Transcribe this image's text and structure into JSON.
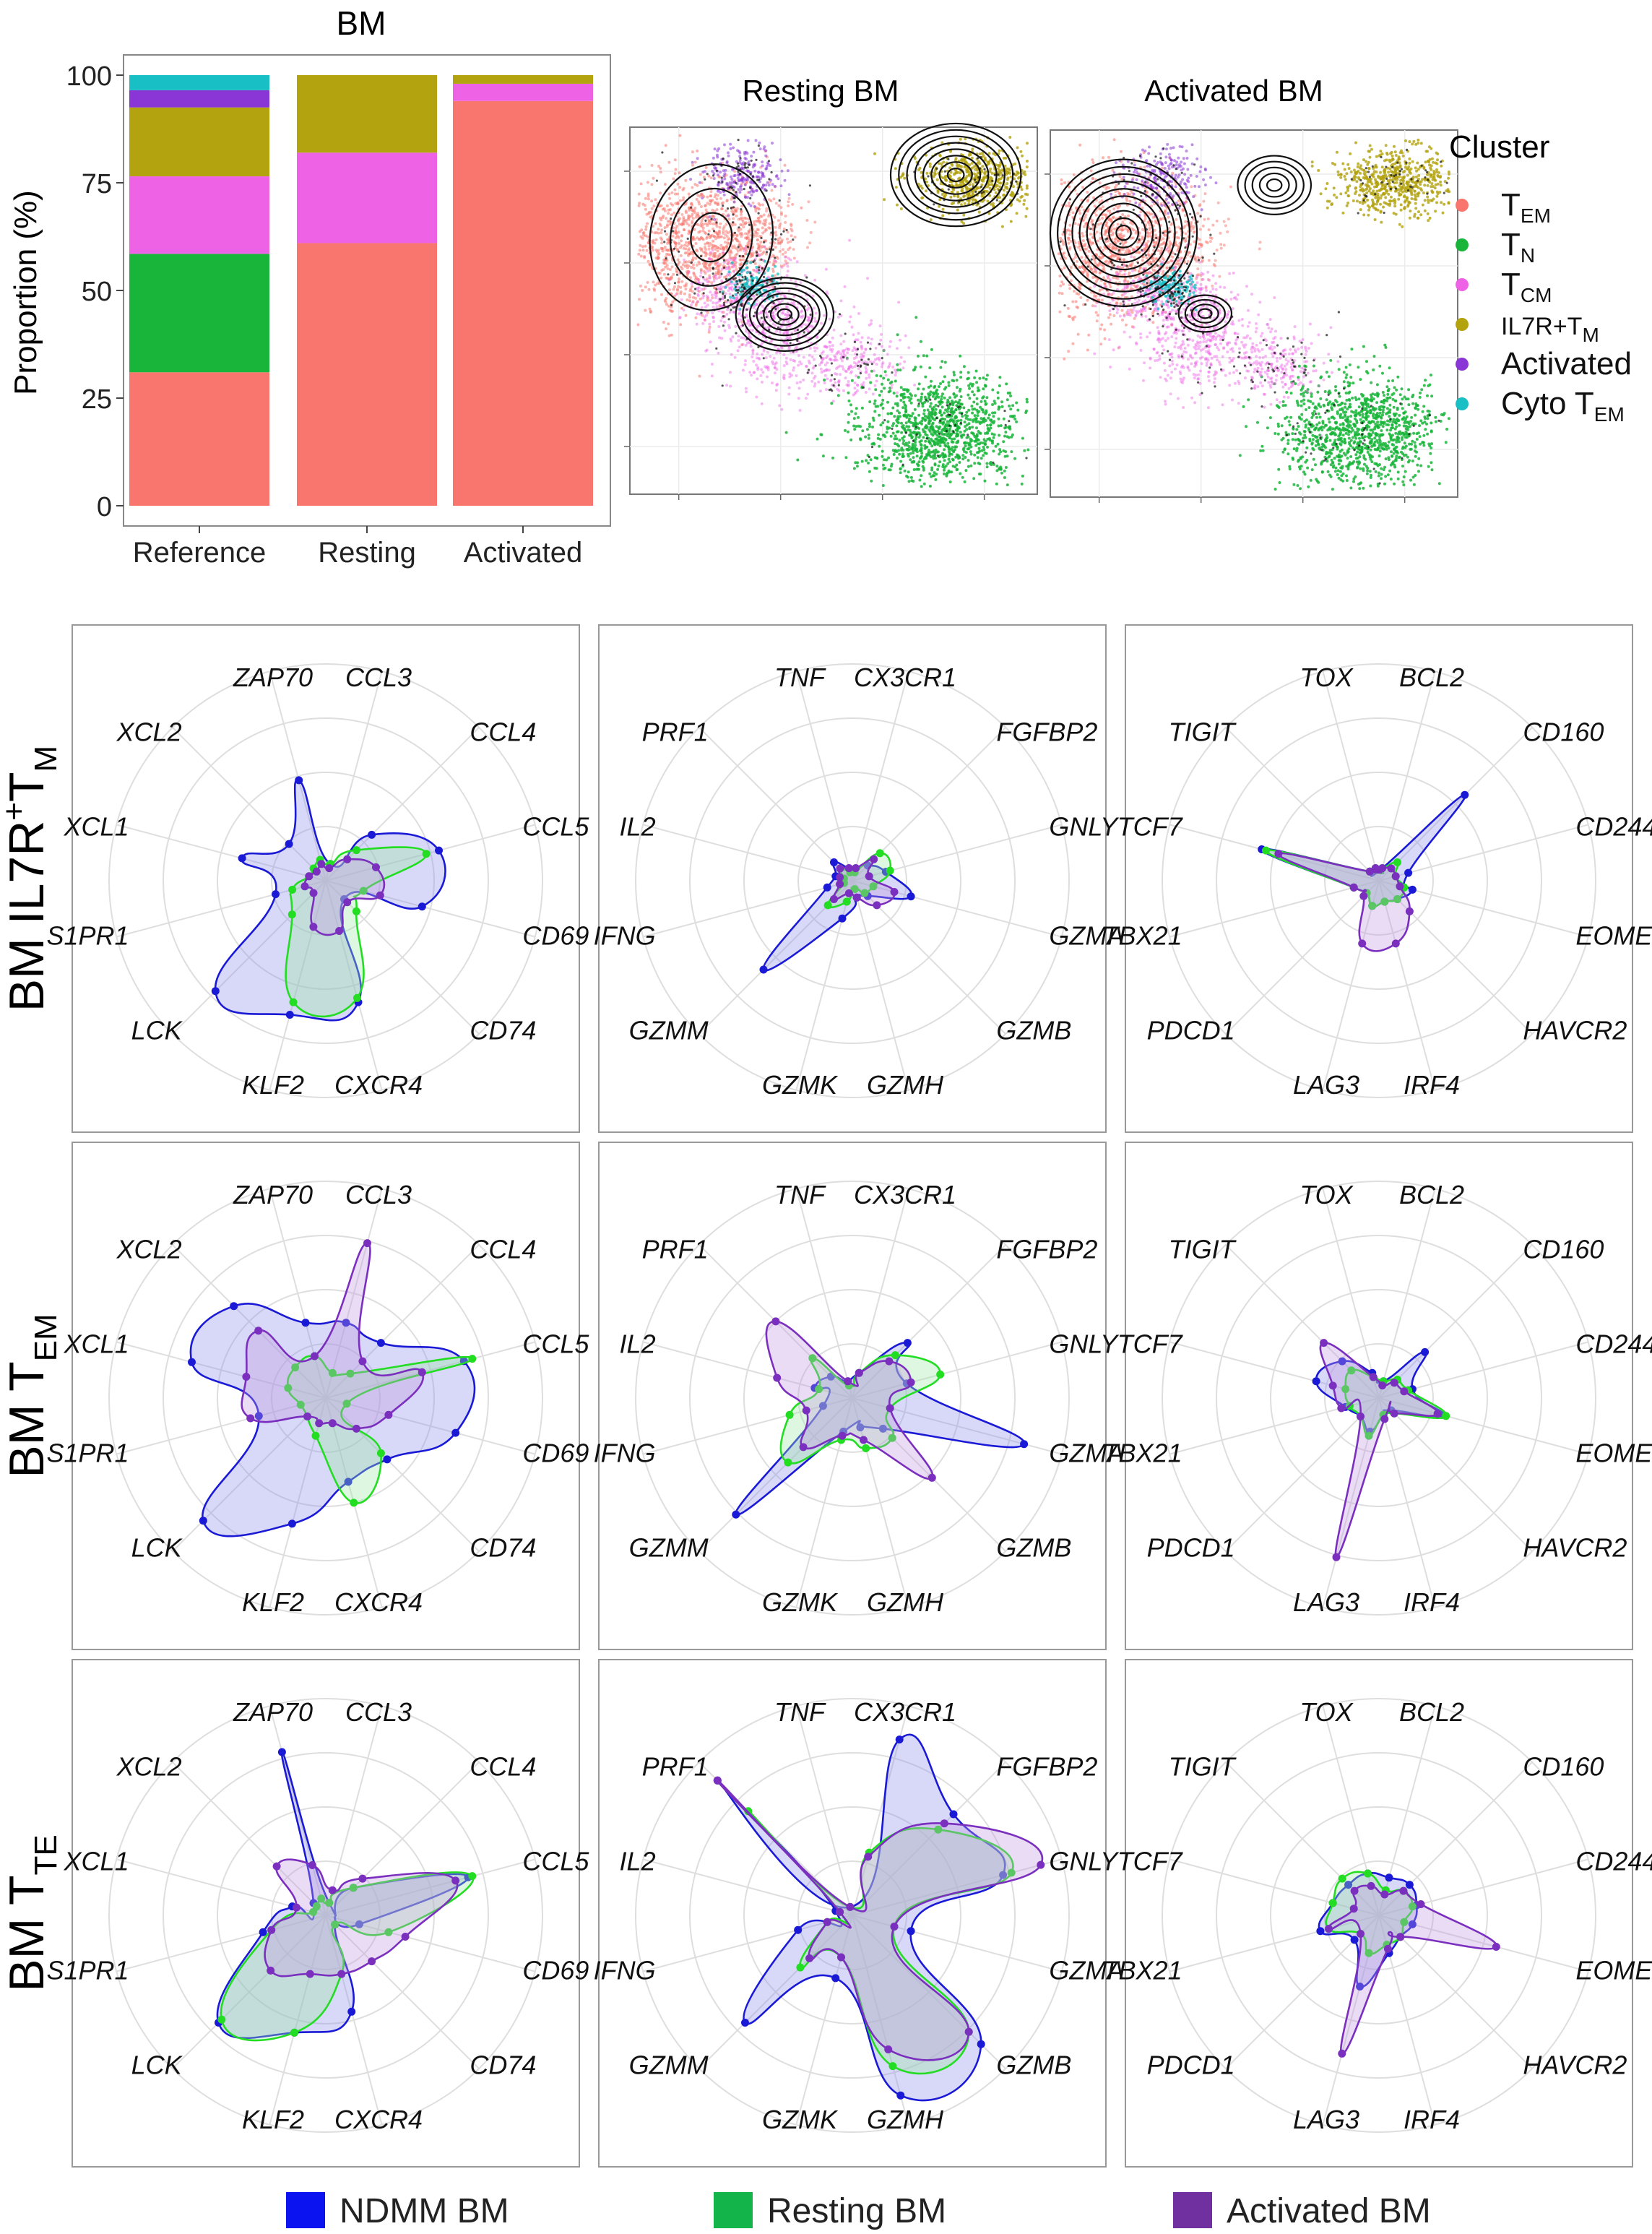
{
  "colors": {
    "TEM": "#F8766D",
    "TN": "#19B53A",
    "TCM": "#EE63E6",
    "IL7R": "#B3A30F",
    "Activated": "#8A35D6",
    "Cyto": "#18BFC4",
    "ndmm": "#1a1ad6",
    "resting": "#22dd22",
    "activated_line": "#7b2fbe",
    "legend_ndmm": "#0b14f0",
    "legend_resting": "#13b54a",
    "legend_activated": "#7030a0"
  },
  "chart_data": [
    {
      "type": "bar",
      "stacked": true,
      "title": "BM",
      "ylabel": "Proportion (%)",
      "ylim": [
        0,
        100
      ],
      "yticks": [
        "0",
        "25",
        "50",
        "75",
        "100"
      ],
      "categories": [
        "Reference",
        "Resting",
        "Activated"
      ],
      "series": [
        {
          "name": "TEM",
          "key": "TEM",
          "values": [
            31,
            61,
            94
          ]
        },
        {
          "name": "TN",
          "key": "TN",
          "values": [
            27.5,
            0,
            0
          ]
        },
        {
          "name": "TCM",
          "key": "TCM",
          "values": [
            18,
            21,
            4
          ]
        },
        {
          "name": "IL7R+TM",
          "key": "IL7R",
          "values": [
            16,
            18,
            2
          ]
        },
        {
          "name": "Activated",
          "key": "Activated",
          "values": [
            4,
            0,
            0
          ]
        },
        {
          "name": "Cyto TEM",
          "key": "Cyto",
          "values": [
            3.5,
            0,
            0
          ]
        }
      ]
    },
    {
      "type": "scatter",
      "titles": [
        "Resting BM",
        "Activated BM"
      ],
      "legend_title": "Cluster",
      "legend": [
        {
          "key": "TEM",
          "main": "T",
          "sub": "EM",
          "label": "TEM"
        },
        {
          "key": "TN",
          "main": "T",
          "sub": "N",
          "label": "TN"
        },
        {
          "key": "TCM",
          "main": "T",
          "sub": "CM",
          "label": "TCM"
        },
        {
          "key": "IL7R",
          "main": "IL7R+T",
          "sub": "M",
          "label": "IL7R+TM"
        },
        {
          "key": "Activated",
          "main": "Activated",
          "sub": "",
          "label": "Activated"
        },
        {
          "key": "Cyto",
          "main": "Cyto T",
          "sub": "EM",
          "label": "Cyto TEM"
        }
      ]
    },
    {
      "type": "radar",
      "rows": [
        {
          "main": "BM IL7R",
          "sup": "+",
          "main2": "T",
          "sub": "M",
          "label": "BM IL7R+TM"
        },
        {
          "main": "BM T",
          "sup": "",
          "main2": "",
          "sub": "EM",
          "label": "BM TEM"
        },
        {
          "main": "BM T",
          "sup": "",
          "main2": "",
          "sub": "TE",
          "label": "BM TTE"
        }
      ],
      "genes": [
        [
          "CCL3",
          "CCL4",
          "CCL5",
          "CD69",
          "CD74",
          "CXCR4",
          "KLF2",
          "LCK",
          "S1PR1",
          "XCL1",
          "XCL2",
          "ZAP70"
        ],
        [
          "CX3CR1",
          "FGFBP2",
          "GNLY",
          "GZMA",
          "GZMB",
          "GZMH",
          "GZMK",
          "GZMM",
          "IFNG",
          "IL2",
          "PRF1",
          "TNF"
        ],
        [
          "BCL2",
          "CD160",
          "CD244",
          "EOMES",
          "HAVCR2",
          "IRF4",
          "LAG3",
          "PDCD1",
          "TBX21",
          "TCF7",
          "TIGIT",
          "TOX"
        ]
      ],
      "max_value": 5,
      "panels": [
        [
          {
            "ndmm": [
              0.4,
              1.5,
              2.7,
              2.3,
              0.6,
              2.9,
              3.2,
              3.6,
              1.2,
              2.0,
              1.2,
              2.4
            ],
            "resting": [
              0.4,
              1.0,
              2.4,
              0.9,
              1.0,
              2.8,
              2.9,
              1.1,
              0.8,
              0.4,
              0.4,
              0.5
            ],
            "activated": [
              0.3,
              0.7,
              1.2,
              1.3,
              0.7,
              1.2,
              1.1,
              0.4,
              0.5,
              0.4,
              0.3,
              0.4
            ]
          },
          {
            "ndmm": [
              0.3,
              0.5,
              0.8,
              1.4,
              0.5,
              0.4,
              0.9,
              2.9,
              0.6,
              0.4,
              0.6,
              0.3
            ],
            "resting": [
              0.2,
              0.9,
              0.9,
              0.5,
              0.4,
              0.2,
              0.5,
              0.8,
              0.2,
              0.2,
              0.4,
              0.2
            ],
            "activated": [
              0.3,
              0.7,
              0.4,
              1.0,
              0.8,
              0.4,
              0.3,
              0.6,
              0.3,
              0.3,
              0.4,
              0.3
            ]
          },
          {
            "ndmm": [
              0.3,
              2.8,
              0.7,
              0.8,
              0.6,
              0.5,
              0.6,
              0.4,
              0.6,
              2.8,
              0.3,
              0.3
            ],
            "resting": [
              0.3,
              0.6,
              0.4,
              0.6,
              0.6,
              0.5,
              0.6,
              0.4,
              0.6,
              2.7,
              0.3,
              0.3
            ],
            "activated": [
              0.3,
              0.4,
              0.4,
              0.5,
              1.0,
              1.5,
              1.5,
              0.5,
              0.6,
              2.4,
              0.3,
              0.3
            ]
          }
        ],
        [
          {
            "ndmm": [
              1.8,
              1.8,
              3.3,
              3.1,
              2.0,
              2.0,
              3.0,
              4.0,
              1.6,
              3.2,
              3.0,
              1.8
            ],
            "resting": [
              0.6,
              0.8,
              3.5,
              0.5,
              1.8,
              2.5,
              0.9,
              0.6,
              0.6,
              0.9,
              1.0,
              1.0
            ],
            "activated": [
              3.7,
              1.2,
              2.3,
              1.5,
              1.0,
              0.6,
              0.6,
              0.6,
              1.8,
              1.9,
              2.2,
              1.0
            ]
          },
          {
            "ndmm": [
              0.6,
              1.8,
              1.3,
              4.1,
              1.0,
              0.7,
              0.8,
              3.8,
              0.7,
              0.9,
              0.7,
              0.4
            ],
            "resting": [
              0.6,
              1.4,
              2.1,
              0.9,
              1.3,
              1.2,
              1.0,
              2.1,
              1.5,
              0.8,
              1.3,
              0.3
            ],
            "activated": [
              0.6,
              1.2,
              1.4,
              0.9,
              2.6,
              1.0,
              0.9,
              1.6,
              1.1,
              1.8,
              2.5,
              0.4
            ]
          },
          {
            "ndmm": [
              0.4,
              1.5,
              0.8,
              1.5,
              0.4,
              0.4,
              0.8,
              0.6,
              0.8,
              1.5,
              1.2,
              0.6
            ],
            "resting": [
              0.4,
              0.6,
              0.7,
              1.6,
              0.5,
              0.4,
              0.9,
              0.6,
              0.7,
              0.8,
              0.9,
              0.5
            ],
            "activated": [
              0.3,
              0.5,
              0.6,
              1.4,
              0.5,
              0.5,
              3.8,
              0.6,
              0.9,
              1.1,
              1.8,
              0.5
            ]
          }
        ],
        [
          {
            "ndmm": [
              0.3,
              0.9,
              3.4,
              0.8,
              0.3,
              2.3,
              2.8,
              3.5,
              1.5,
              0.8,
              0.4,
              3.9
            ],
            "resting": [
              0.3,
              0.9,
              3.5,
              1.5,
              0.3,
              1.4,
              2.8,
              3.4,
              1.3,
              0.3,
              0.3,
              0.4
            ],
            "activated": [
              0.6,
              1.2,
              3.1,
              1.9,
              1.5,
              1.4,
              1.4,
              1.8,
              1.3,
              0.7,
              1.6,
              1.2
            ]
          },
          {
            "ndmm": [
              4.2,
              3.3,
              3.6,
              1.4,
              4.2,
              4.3,
              1.5,
              3.5,
              1.3,
              0.4,
              4.4,
              0.2
            ],
            "resting": [
              1.5,
              2.8,
              3.8,
              1.0,
              3.8,
              3.6,
              1.0,
              1.7,
              0.6,
              0.3,
              3.4,
              0.2
            ],
            "activated": [
              1.4,
              3.0,
              4.5,
              1.0,
              3.8,
              3.2,
              1.0,
              1.4,
              0.6,
              0.3,
              4.4,
              0.2
            ]
          },
          {
            "ndmm": [
              0.9,
              1.0,
              0.9,
              0.8,
              0.7,
              0.9,
              1.7,
              0.8,
              1.4,
              1.1,
              1.0,
              1.0
            ],
            "resting": [
              0.6,
              0.8,
              0.8,
              0.6,
              0.7,
              0.7,
              0.9,
              0.6,
              1.2,
              1.1,
              1.2,
              1.0
            ],
            "activated": [
              0.5,
              0.8,
              1.0,
              2.8,
              0.7,
              0.8,
              3.3,
              0.6,
              1.2,
              0.6,
              0.8,
              0.7
            ]
          }
        ]
      ],
      "legend": [
        {
          "key": "ndmm",
          "label": "NDMM BM"
        },
        {
          "key": "resting",
          "label": "Resting BM"
        },
        {
          "key": "activated",
          "label": "Activated BM"
        }
      ]
    }
  ]
}
